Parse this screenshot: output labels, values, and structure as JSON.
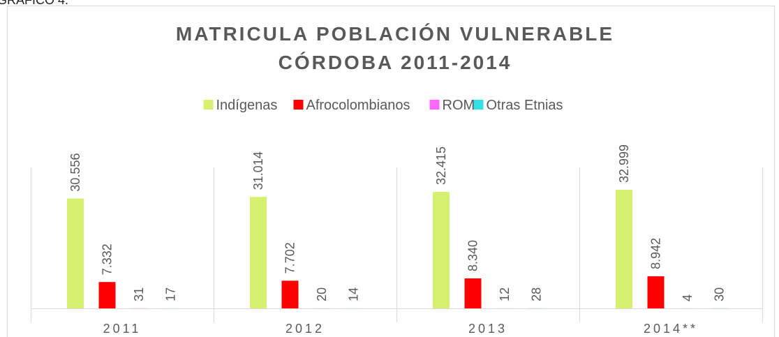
{
  "figure_label": "GRÁFICO 4.",
  "chart_data": {
    "type": "bar",
    "title": [
      "MATRICULA POBLACIÓN VULNERABLE",
      "CÓRDOBA 2011-2014"
    ],
    "categories": [
      "2011",
      "2012",
      "2013",
      "2014**"
    ],
    "series": [
      {
        "name": "Indígenas",
        "color": "#d6f06f",
        "values": [
          30556,
          31014,
          32415,
          32999
        ],
        "value_labels": [
          "30.556",
          "31.014",
          "32.415",
          "32.999"
        ]
      },
      {
        "name": "Afrocolombianos",
        "color": "#ff0000",
        "values": [
          7332,
          7702,
          8340,
          8942
        ],
        "value_labels": [
          "7.332",
          "7.702",
          "8.340",
          "8.942"
        ]
      },
      {
        "name": "ROM",
        "color": "#ff66ff",
        "values": [
          31,
          20,
          12,
          4
        ]
      },
      {
        "name": "Otras Etnias",
        "color": "#33e0e6",
        "values": [
          17,
          14,
          28,
          30
        ]
      }
    ],
    "legend": "top"
  }
}
